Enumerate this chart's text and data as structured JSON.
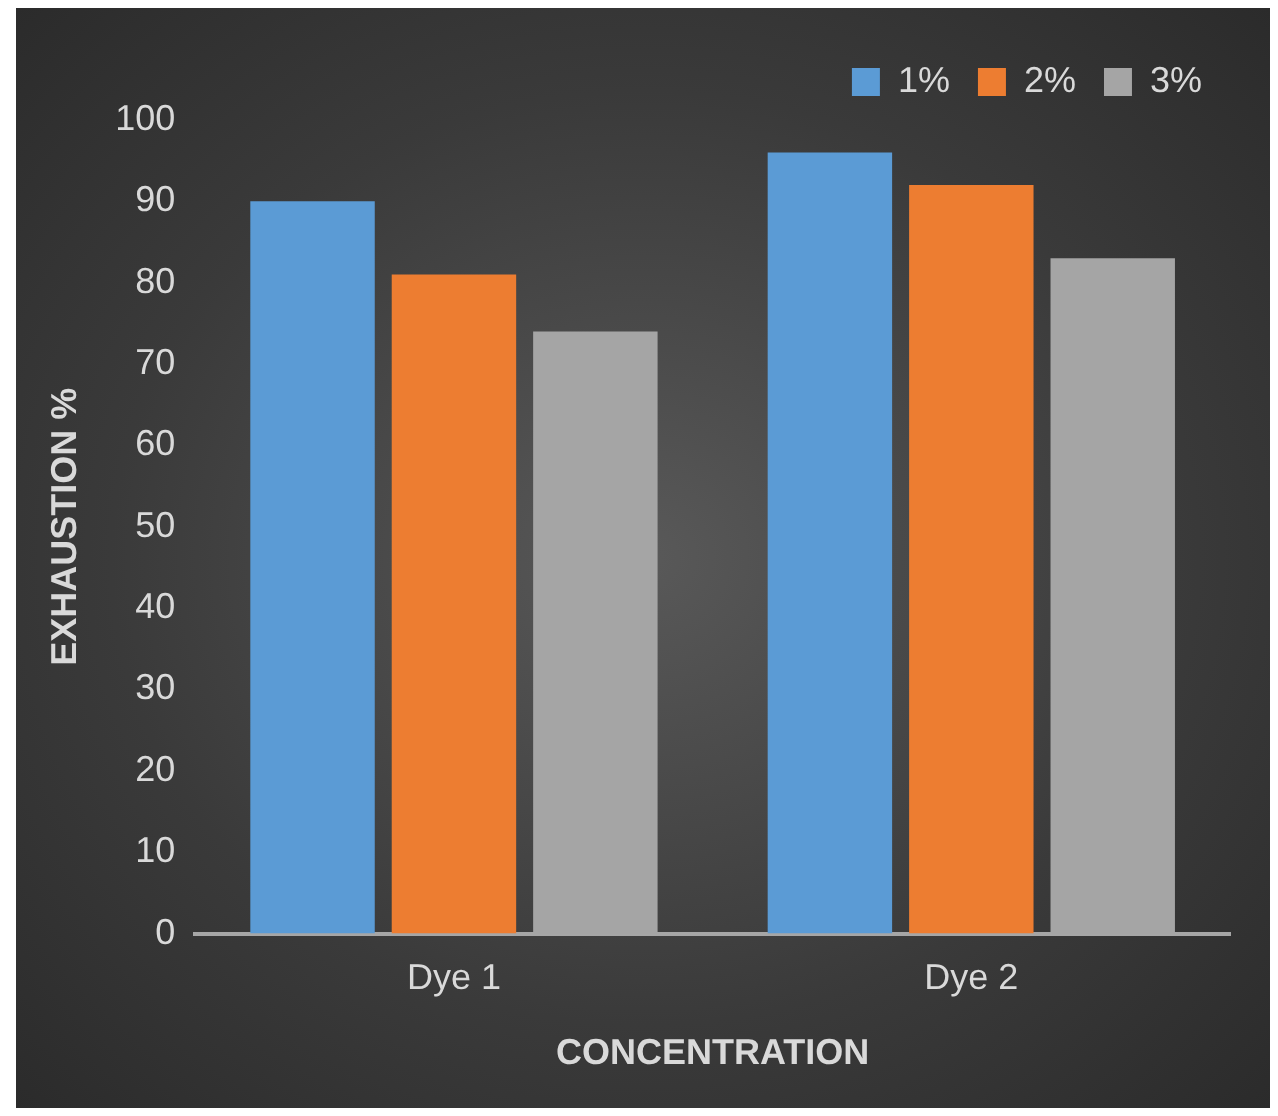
{
  "chart_data": {
    "type": "bar",
    "xlabel": "CONCENTRATION",
    "ylabel": "EXHAUSTION %",
    "categories": [
      "Dye 1",
      "Dye 2"
    ],
    "series": [
      {
        "name": "1%",
        "color": "#5b9bd5",
        "values": [
          90,
          96
        ]
      },
      {
        "name": "2%",
        "color": "#ed7d31",
        "values": [
          81,
          92
        ]
      },
      {
        "name": "3%",
        "color": "#a5a5a5",
        "values": [
          74,
          83
        ]
      }
    ],
    "ylim": [
      0,
      100
    ],
    "yticks": [
      0,
      10,
      20,
      30,
      40,
      50,
      60,
      70,
      80,
      90,
      100
    ],
    "grid": false,
    "legend": "top right"
  }
}
